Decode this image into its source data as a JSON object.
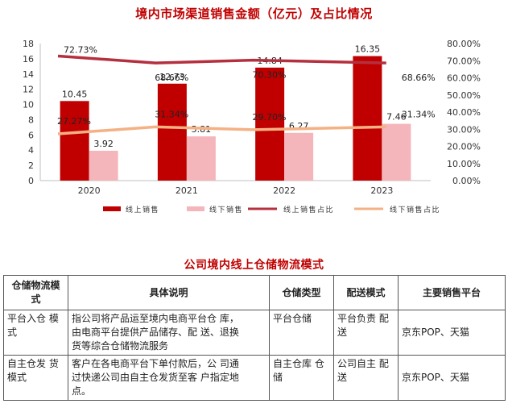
{
  "chart_title": "境内市场渠道销售金额（亿元）及占比情况",
  "chart_data": {
    "type": "bar",
    "title": "境内市场渠道销售金额（亿元）及占比情况",
    "categories": [
      "2020",
      "2021",
      "2022",
      "2023"
    ],
    "series": [
      {
        "name": "线上销售",
        "type": "bar",
        "axis": "left",
        "color": "#c00000",
        "values": [
          10.45,
          12.73,
          14.84,
          16.35
        ],
        "labels": [
          "10.45",
          "12.73",
          "14.84",
          "16.35"
        ]
      },
      {
        "name": "线下销售",
        "type": "bar",
        "axis": "left",
        "color": "#f4b6bb",
        "values": [
          3.92,
          5.81,
          6.27,
          7.46
        ],
        "labels": [
          "3.92",
          "5.81",
          "6.27",
          "7.46"
        ]
      },
      {
        "name": "线上销售占比",
        "type": "line",
        "axis": "right",
        "color": "#b5303e",
        "values": [
          72.73,
          68.66,
          70.3,
          68.66
        ],
        "labels": [
          "72.73%",
          "68.66%",
          "70.30%",
          "68.66%"
        ]
      },
      {
        "name": "线下销售占比",
        "type": "line",
        "axis": "right",
        "color": "#f4b183",
        "values": [
          27.27,
          31.34,
          29.7,
          31.34
        ],
        "labels": [
          "27.27%",
          "31.34%",
          "29.70%",
          "31.34%"
        ]
      }
    ],
    "ylim": [
      0,
      18
    ],
    "y_ticks": [
      "0",
      "2",
      "4",
      "6",
      "8",
      "10",
      "12",
      "14",
      "16",
      "18"
    ],
    "y2lim": [
      0,
      80
    ],
    "y2_ticks": [
      "0.00%",
      "10.00%",
      "20.00%",
      "30.00%",
      "40.00%",
      "50.00%",
      "60.00%",
      "70.00%",
      "80.00%"
    ],
    "grid": false,
    "legend_position": "bottom"
  },
  "table_title": "公司境内线上仓储物流模式",
  "table": {
    "headers": [
      "仓储物流模\n式",
      "具体说明",
      "仓储类型",
      "配送模式",
      "主要销售平台"
    ],
    "rows": [
      [
        "平台入仓 模\n式",
        "指公司将产品运至境内电商平台仓 库，\n由电商平台提供产品储存、配 送、退换\n货等综合仓储物流服务",
        "平台仓储",
        "平台负责 配\n送",
        "京东POP、天猫"
      ],
      [
        "自主仓发 货\n模式",
        "客户在各电商平台下单付款后，公 司通\n过快递公司由自主仓发货至客 户指定地\n点。",
        "自主仓库 仓\n储",
        "公司自主 配\n送",
        "京东POP、天猫"
      ]
    ]
  }
}
